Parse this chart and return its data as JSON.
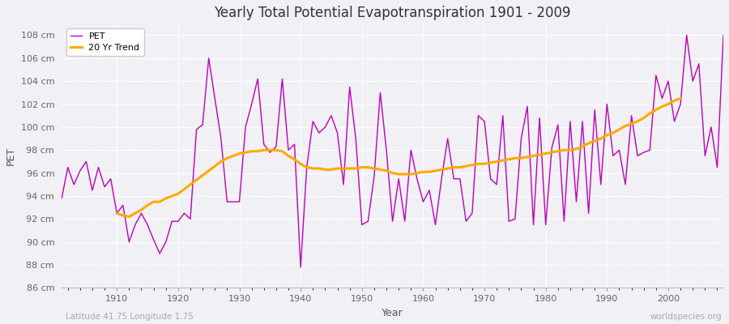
{
  "title": "Yearly Total Potential Evapotranspiration 1901 - 2009",
  "xlabel": "Year",
  "ylabel": "PET",
  "subtitle": "Latitude 41.75 Longitude 1.75",
  "watermark": "worldspecies.org",
  "pet_color": "#bb00bb",
  "trend_color": "#ffaa00",
  "background_color": "#f0f0f5",
  "plot_bg_color": "#f0f0f5",
  "ylim": [
    86,
    109
  ],
  "xlim": [
    1901,
    2009
  ],
  "yticks": [
    86,
    88,
    90,
    92,
    94,
    96,
    98,
    100,
    102,
    104,
    106,
    108
  ],
  "xticks": [
    1910,
    1920,
    1930,
    1940,
    1950,
    1960,
    1970,
    1980,
    1990,
    2000
  ],
  "years": [
    1901,
    1902,
    1903,
    1904,
    1905,
    1906,
    1907,
    1908,
    1909,
    1910,
    1911,
    1912,
    1913,
    1914,
    1915,
    1916,
    1917,
    1918,
    1919,
    1920,
    1921,
    1922,
    1923,
    1924,
    1925,
    1926,
    1927,
    1928,
    1929,
    1930,
    1931,
    1932,
    1933,
    1934,
    1935,
    1936,
    1937,
    1938,
    1939,
    1940,
    1941,
    1942,
    1943,
    1944,
    1945,
    1946,
    1947,
    1948,
    1949,
    1950,
    1951,
    1952,
    1953,
    1954,
    1955,
    1956,
    1957,
    1958,
    1959,
    1960,
    1961,
    1962,
    1963,
    1964,
    1965,
    1966,
    1967,
    1968,
    1969,
    1970,
    1971,
    1972,
    1973,
    1974,
    1975,
    1976,
    1977,
    1978,
    1979,
    1980,
    1981,
    1982,
    1983,
    1984,
    1985,
    1986,
    1987,
    1988,
    1989,
    1990,
    1991,
    1992,
    1993,
    1994,
    1995,
    1996,
    1997,
    1998,
    1999,
    2000,
    2001,
    2002,
    2003,
    2004,
    2005,
    2006,
    2007,
    2008,
    2009
  ],
  "pet": [
    93.8,
    96.5,
    95.0,
    96.2,
    97.0,
    94.5,
    96.5,
    94.8,
    95.5,
    92.5,
    93.2,
    90.0,
    91.5,
    92.5,
    91.5,
    90.2,
    89.0,
    90.0,
    91.8,
    91.8,
    92.5,
    92.0,
    99.8,
    100.2,
    106.0,
    102.5,
    99.0,
    93.5,
    93.5,
    93.5,
    100.0,
    102.0,
    104.2,
    98.5,
    97.8,
    98.3,
    104.2,
    98.0,
    98.5,
    87.8,
    96.5,
    100.5,
    99.5,
    100.0,
    101.0,
    99.5,
    95.0,
    103.5,
    99.0,
    91.5,
    91.8,
    95.7,
    103.0,
    98.0,
    91.8,
    95.5,
    91.8,
    98.0,
    95.5,
    93.5,
    94.5,
    91.5,
    95.5,
    99.0,
    95.5,
    95.5,
    91.8,
    92.5,
    101.0,
    100.5,
    95.5,
    95.0,
    101.0,
    91.8,
    92.0,
    99.0,
    101.8,
    91.5,
    100.8,
    91.5,
    98.2,
    100.2,
    91.8,
    100.5,
    93.5,
    100.5,
    92.5,
    101.5,
    95.0,
    102.0,
    97.5,
    98.0,
    95.0,
    101.0,
    97.5,
    97.8,
    98.0,
    104.5,
    102.5,
    104.0,
    100.5,
    102.0,
    108.0,
    104.0,
    105.5,
    97.5,
    100.0,
    96.5,
    108.0
  ],
  "trend": [
    null,
    null,
    null,
    null,
    null,
    null,
    null,
    null,
    null,
    92.5,
    92.3,
    92.2,
    92.5,
    92.8,
    93.2,
    93.5,
    93.5,
    93.8,
    94.0,
    94.2,
    94.6,
    95.0,
    95.4,
    95.8,
    96.2,
    96.6,
    97.0,
    97.3,
    97.5,
    97.7,
    97.8,
    97.9,
    97.9,
    98.0,
    98.0,
    98.0,
    97.9,
    97.5,
    97.2,
    96.8,
    96.5,
    96.4,
    96.4,
    96.3,
    96.3,
    96.4,
    96.4,
    96.4,
    96.4,
    96.5,
    96.5,
    96.4,
    96.3,
    96.2,
    96.0,
    95.9,
    95.9,
    95.9,
    96.0,
    96.1,
    96.1,
    96.2,
    96.3,
    96.4,
    96.5,
    96.5,
    96.6,
    96.7,
    96.8,
    96.8,
    96.9,
    97.0,
    97.1,
    97.2,
    97.3,
    97.3,
    97.4,
    97.5,
    97.6,
    97.7,
    97.8,
    97.9,
    98.0,
    98.0,
    98.1,
    98.3,
    98.6,
    98.8,
    99.0,
    99.3,
    99.5,
    99.8,
    100.1,
    100.3,
    100.5,
    100.8,
    101.2,
    101.5,
    101.8,
    102.0,
    102.3,
    102.5,
    null,
    null,
    null,
    null,
    null,
    null,
    null
  ]
}
